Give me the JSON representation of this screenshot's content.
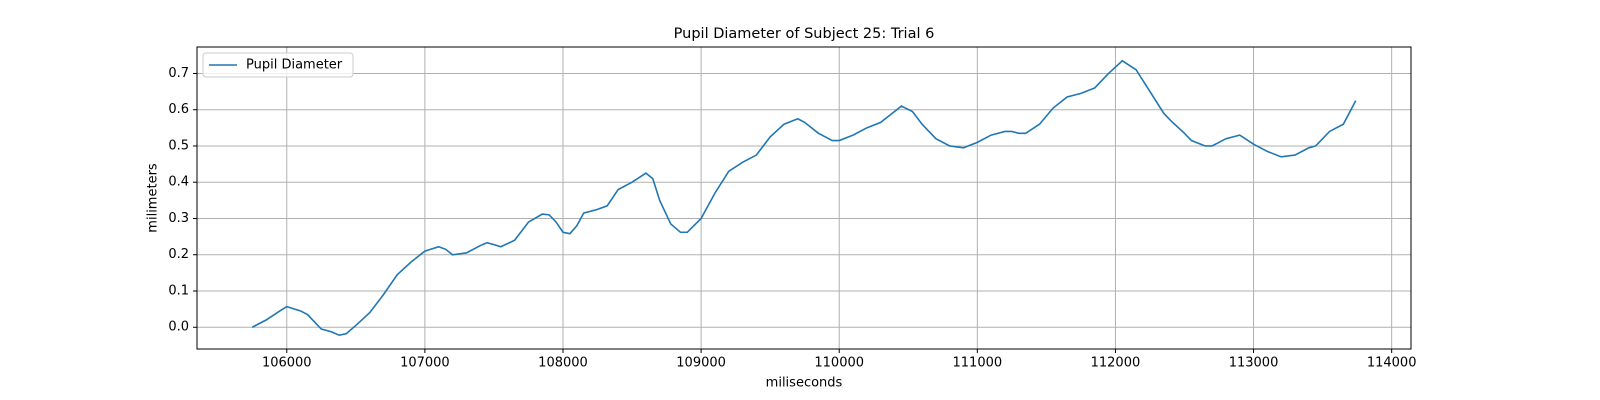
{
  "chart_data": {
    "type": "line",
    "title": "Pupil Diameter of Subject 25: Trial 6",
    "x_label": "miliseconds",
    "y_label": "milimeters",
    "x": [
      105750,
      105850,
      105950,
      106000,
      106100,
      106150,
      106200,
      106250,
      106320,
      106380,
      106430,
      106500,
      106600,
      106700,
      106800,
      106900,
      107000,
      107100,
      107150,
      107200,
      107300,
      107400,
      107450,
      107500,
      107550,
      107650,
      107750,
      107850,
      107900,
      107950,
      108000,
      108050,
      108100,
      108150,
      108250,
      108320,
      108400,
      108500,
      108600,
      108650,
      108700,
      108780,
      108850,
      108900,
      109000,
      109100,
      109200,
      109300,
      109400,
      109500,
      109600,
      109700,
      109750,
      109850,
      109950,
      110000,
      110100,
      110200,
      110300,
      110350,
      110450,
      110530,
      110600,
      110700,
      110800,
      110900,
      111000,
      111100,
      111200,
      111250,
      111300,
      111350,
      111450,
      111550,
      111650,
      111750,
      111850,
      111950,
      112050,
      112150,
      112250,
      112350,
      112400,
      112500,
      112550,
      112650,
      112700,
      112800,
      112900,
      113000,
      113100,
      113200,
      113300,
      113400,
      113450,
      113550,
      113650,
      113740
    ],
    "series": [
      {
        "name": "Pupil Diameter",
        "color": "#1f77b4",
        "values": [
          0.0,
          0.02,
          0.045,
          0.057,
          0.045,
          0.035,
          0.015,
          -0.005,
          -0.012,
          -0.022,
          -0.018,
          0.005,
          0.04,
          0.09,
          0.145,
          0.18,
          0.21,
          0.222,
          0.215,
          0.2,
          0.205,
          0.225,
          0.233,
          0.228,
          0.222,
          0.24,
          0.29,
          0.312,
          0.31,
          0.29,
          0.262,
          0.258,
          0.28,
          0.315,
          0.325,
          0.335,
          0.38,
          0.4,
          0.425,
          0.41,
          0.35,
          0.285,
          0.262,
          0.262,
          0.3,
          0.37,
          0.43,
          0.455,
          0.475,
          0.525,
          0.56,
          0.575,
          0.565,
          0.535,
          0.515,
          0.515,
          0.53,
          0.55,
          0.565,
          0.58,
          0.61,
          0.595,
          0.56,
          0.52,
          0.5,
          0.495,
          0.51,
          0.53,
          0.54,
          0.54,
          0.535,
          0.535,
          0.56,
          0.605,
          0.635,
          0.645,
          0.66,
          0.7,
          0.735,
          0.71,
          0.65,
          0.59,
          0.57,
          0.535,
          0.515,
          0.5,
          0.5,
          0.52,
          0.53,
          0.505,
          0.485,
          0.47,
          0.475,
          0.495,
          0.5,
          0.54,
          0.56,
          0.625
        ]
      }
    ],
    "xlim": [
      105350,
      114140
    ],
    "xticks": [
      106000,
      107000,
      108000,
      109000,
      110000,
      111000,
      112000,
      113000,
      114000
    ],
    "ylim": [
      -0.06,
      0.773
    ],
    "yticks": [
      {
        "value": 0,
        "label": "0.0"
      },
      0.1,
      0.2,
      0.3,
      0.4,
      0.5,
      0.6,
      0.7
    ],
    "grid": true,
    "legend": "upper left"
  }
}
